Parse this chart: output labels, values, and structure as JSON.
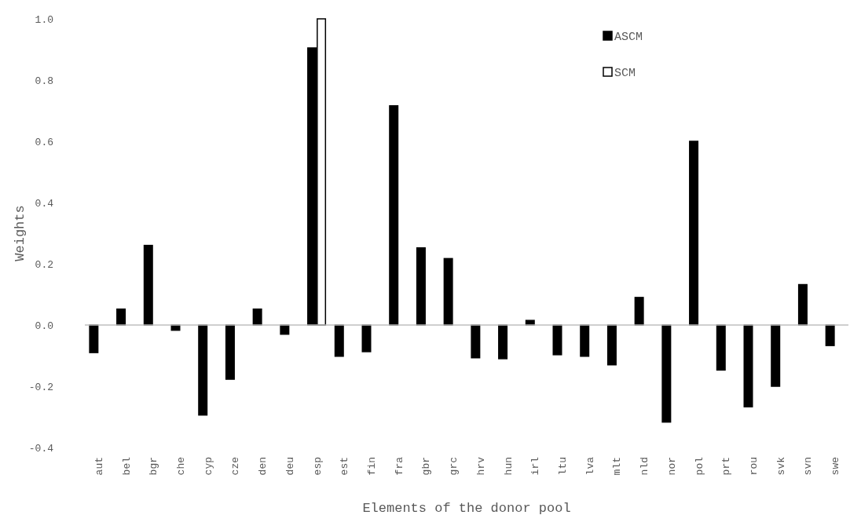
{
  "chart_data": {
    "type": "bar",
    "xlabel": "Elements of the donor pool",
    "ylabel": "Weights",
    "categories": [
      "aut",
      "bel",
      "bgr",
      "che",
      "cyp",
      "cze",
      "den",
      "deu",
      "esp",
      "est",
      "fin",
      "fra",
      "gbr",
      "grc",
      "hrv",
      "hun",
      "irl",
      "ltu",
      "lva",
      "mlt",
      "nld",
      "nor",
      "pol",
      "prt",
      "rou",
      "svk",
      "svn",
      "swe"
    ],
    "series": [
      {
        "name": "ASCM",
        "color": "#000000",
        "values": [
          -0.09,
          0.052,
          0.26,
          -0.017,
          -0.294,
          -0.177,
          0.052,
          -0.03,
          0.905,
          -0.102,
          -0.087,
          0.716,
          0.252,
          0.217,
          -0.107,
          -0.11,
          0.015,
          -0.097,
          -0.102,
          -0.13,
          0.09,
          -0.317,
          0.6,
          -0.147,
          -0.267,
          -0.2,
          0.132,
          -0.067
        ]
      },
      {
        "name": "SCM",
        "color": "#ffffff",
        "values": [
          null,
          null,
          null,
          null,
          null,
          null,
          null,
          null,
          1.0,
          null,
          null,
          null,
          null,
          null,
          null,
          null,
          null,
          null,
          null,
          null,
          null,
          null,
          null,
          null,
          null,
          null,
          null,
          null
        ]
      }
    ],
    "ylim": [
      -0.4,
      1.0
    ],
    "yticks": [
      {
        "value": -0.4,
        "label": "-0.4"
      },
      {
        "value": -0.2,
        "label": "-0.2"
      },
      {
        "value": 0,
        "label": "0.0"
      },
      {
        "value": 0.2,
        "label": "0.2"
      },
      {
        "value": 0.4,
        "label": "0.4"
      },
      {
        "value": 0.6,
        "label": "0.6"
      },
      {
        "value": 0.8,
        "label": "0.8"
      },
      {
        "value": 1.0,
        "label": "1.0"
      }
    ],
    "legend": "top right"
  }
}
